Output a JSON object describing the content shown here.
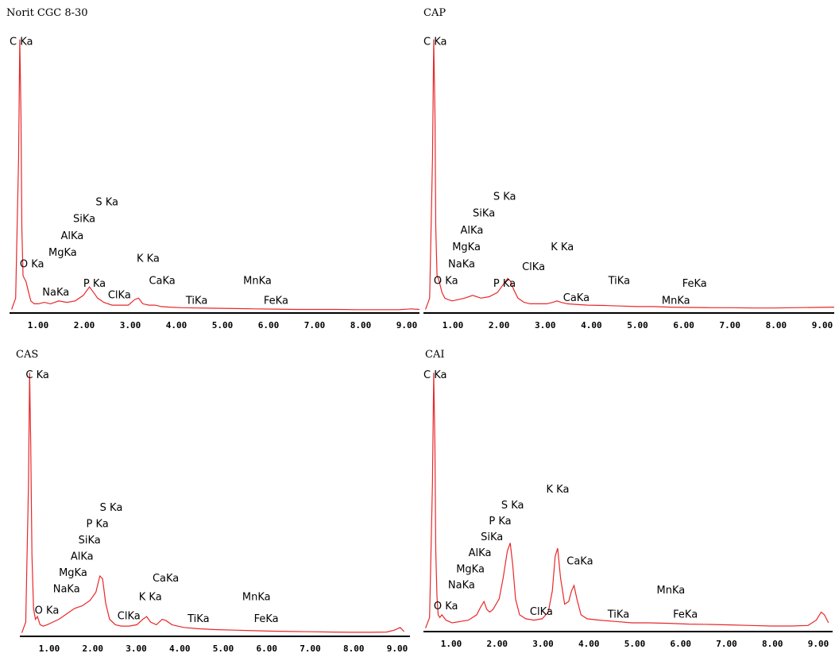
{
  "style": {
    "trace_color": "#e8282a",
    "axis_color": "#000000",
    "background": "#ffffff"
  },
  "chart_data": [
    {
      "type": "line",
      "title": "Norit CGC 8-30",
      "xlabel": "",
      "ylabel": "",
      "xlim": [
        0,
        10.0
      ],
      "ylim": [
        0,
        1
      ],
      "grid": false,
      "x_ticks": [
        "1.00",
        "2.00",
        "3.00",
        "4.00",
        "5.00",
        "6.00",
        "7.00",
        "8.00",
        "9.00"
      ],
      "series": [
        {
          "x": [
            0.05,
            0.15,
            0.22,
            0.25,
            0.28,
            0.3,
            0.33,
            0.36,
            0.4,
            0.45,
            0.52,
            0.6,
            0.7,
            0.85,
            1.0,
            1.2,
            1.4,
            1.6,
            1.8,
            1.95,
            2.05,
            2.15,
            2.3,
            2.5,
            2.7,
            2.9,
            3.05,
            3.15,
            3.25,
            3.4,
            3.55,
            3.7,
            3.9,
            4.2,
            4.6,
            5.0,
            5.5,
            6.0,
            6.5,
            7.0,
            7.5,
            8.0,
            8.5,
            9.0,
            9.5,
            9.8,
            10.0
          ],
          "y": [
            0.01,
            0.05,
            0.55,
            0.97,
            0.7,
            0.3,
            0.13,
            0.12,
            0.11,
            0.08,
            0.04,
            0.03,
            0.03,
            0.035,
            0.03,
            0.04,
            0.035,
            0.04,
            0.06,
            0.09,
            0.07,
            0.05,
            0.035,
            0.025,
            0.025,
            0.025,
            0.045,
            0.05,
            0.03,
            0.025,
            0.025,
            0.02,
            0.018,
            0.016,
            0.015,
            0.014,
            0.013,
            0.012,
            0.011,
            0.01,
            0.01,
            0.01,
            0.009,
            0.009,
            0.009,
            0.012,
            0.01
          ]
        }
      ],
      "annotations": [
        {
          "text": "C Ka",
          "x": 0.0,
          "y": 0.95
        },
        {
          "text": "O Ka",
          "x": 0.25,
          "y": 0.16
        },
        {
          "text": "NaKa",
          "x": 0.8,
          "y": 0.06
        },
        {
          "text": "MgKa",
          "x": 0.95,
          "y": 0.2
        },
        {
          "text": "AlKa",
          "x": 1.25,
          "y": 0.26
        },
        {
          "text": "SiKa",
          "x": 1.55,
          "y": 0.32
        },
        {
          "text": "S Ka",
          "x": 2.1,
          "y": 0.38
        },
        {
          "text": "P Ka",
          "x": 1.8,
          "y": 0.09
        },
        {
          "text": "ClKa",
          "x": 2.4,
          "y": 0.05
        },
        {
          "text": "K Ka",
          "x": 3.1,
          "y": 0.18
        },
        {
          "text": "CaKa",
          "x": 3.4,
          "y": 0.1
        },
        {
          "text": "TiKa",
          "x": 4.3,
          "y": 0.03
        },
        {
          "text": "MnKa",
          "x": 5.7,
          "y": 0.1
        },
        {
          "text": "FeKa",
          "x": 6.2,
          "y": 0.03
        }
      ]
    },
    {
      "type": "line",
      "title": "CAP",
      "xlabel": "",
      "ylabel": "",
      "xlim": [
        0,
        10.0
      ],
      "ylim": [
        0,
        1
      ],
      "grid": false,
      "x_ticks": [
        "1.00",
        "2.00",
        "3.00",
        "4.00",
        "5.00",
        "6.00",
        "7.00",
        "8.00",
        "9.00"
      ],
      "series": [
        {
          "x": [
            0.05,
            0.15,
            0.22,
            0.25,
            0.28,
            0.3,
            0.33,
            0.36,
            0.4,
            0.45,
            0.52,
            0.6,
            0.7,
            0.85,
            1.0,
            1.2,
            1.4,
            1.6,
            1.8,
            1.95,
            2.05,
            2.12,
            2.2,
            2.3,
            2.45,
            2.6,
            2.8,
            3.0,
            3.15,
            3.25,
            3.35,
            3.5,
            3.7,
            4.0,
            4.4,
            4.8,
            5.2,
            5.6,
            6.0,
            6.5,
            7.0,
            7.5,
            8.0,
            8.5,
            9.0,
            9.5,
            10.0
          ],
          "y": [
            0.01,
            0.05,
            0.55,
            0.97,
            0.7,
            0.3,
            0.13,
            0.12,
            0.1,
            0.07,
            0.05,
            0.045,
            0.04,
            0.045,
            0.05,
            0.06,
            0.05,
            0.055,
            0.07,
            0.1,
            0.12,
            0.11,
            0.08,
            0.05,
            0.035,
            0.03,
            0.03,
            0.03,
            0.035,
            0.04,
            0.035,
            0.03,
            0.028,
            0.025,
            0.024,
            0.022,
            0.02,
            0.02,
            0.018,
            0.017,
            0.016,
            0.016,
            0.015,
            0.015,
            0.016,
            0.017,
            0.018
          ]
        }
      ],
      "annotations": [
        {
          "text": "C Ka",
          "x": 0.0,
          "y": 0.95
        },
        {
          "text": "O Ka",
          "x": 0.25,
          "y": 0.1
        },
        {
          "text": "NaKa",
          "x": 0.6,
          "y": 0.16
        },
        {
          "text": "MgKa",
          "x": 0.7,
          "y": 0.22
        },
        {
          "text": "AlKa",
          "x": 0.9,
          "y": 0.28
        },
        {
          "text": "SiKa",
          "x": 1.2,
          "y": 0.34
        },
        {
          "text": "S Ka",
          "x": 1.7,
          "y": 0.4
        },
        {
          "text": "P Ka",
          "x": 1.7,
          "y": 0.09
        },
        {
          "text": "ClKa",
          "x": 2.4,
          "y": 0.15
        },
        {
          "text": "K Ka",
          "x": 3.1,
          "y": 0.22
        },
        {
          "text": "CaKa",
          "x": 3.4,
          "y": 0.04
        },
        {
          "text": "TiKa",
          "x": 4.5,
          "y": 0.1
        },
        {
          "text": "FeKa",
          "x": 6.3,
          "y": 0.09
        },
        {
          "text": "MnKa",
          "x": 5.8,
          "y": 0.03
        }
      ]
    },
    {
      "type": "line",
      "title": "CAS",
      "xlabel": "",
      "ylabel": "",
      "xlim": [
        0,
        10.0
      ],
      "ylim": [
        0,
        1
      ],
      "grid": false,
      "x_ticks": [
        "1.00",
        "2.00",
        "3.00",
        "4.00",
        "5.00",
        "6.00",
        "7.00",
        "8.00",
        "9.00"
      ],
      "series": [
        {
          "x": [
            0.05,
            0.15,
            0.22,
            0.25,
            0.28,
            0.31,
            0.35,
            0.4,
            0.45,
            0.52,
            0.6,
            0.7,
            0.85,
            1.0,
            1.2,
            1.4,
            1.6,
            1.8,
            1.95,
            2.05,
            2.12,
            2.2,
            2.3,
            2.45,
            2.6,
            2.8,
            3.0,
            3.15,
            3.25,
            3.35,
            3.5,
            3.65,
            3.75,
            3.9,
            4.2,
            4.6,
            5.0,
            5.5,
            6.0,
            6.5,
            7.0,
            7.5,
            8.0,
            8.5,
            9.0,
            9.4,
            9.6,
            9.75,
            9.85
          ],
          "y": [
            0.01,
            0.05,
            0.55,
            0.97,
            0.7,
            0.3,
            0.1,
            0.06,
            0.07,
            0.04,
            0.035,
            0.04,
            0.05,
            0.06,
            0.08,
            0.1,
            0.11,
            0.13,
            0.16,
            0.22,
            0.21,
            0.12,
            0.06,
            0.04,
            0.035,
            0.035,
            0.04,
            0.06,
            0.07,
            0.05,
            0.04,
            0.06,
            0.055,
            0.04,
            0.03,
            0.025,
            0.022,
            0.02,
            0.018,
            0.016,
            0.015,
            0.014,
            0.013,
            0.012,
            0.012,
            0.013,
            0.02,
            0.03,
            0.015
          ]
        }
      ],
      "annotations": [
        {
          "text": "C Ka",
          "x": 0.15,
          "y": 0.95
        },
        {
          "text": "O Ka",
          "x": 0.38,
          "y": 0.08
        },
        {
          "text": "NaKa",
          "x": 0.85,
          "y": 0.16
        },
        {
          "text": "MgKa",
          "x": 1.0,
          "y": 0.22
        },
        {
          "text": "AlKa",
          "x": 1.3,
          "y": 0.28
        },
        {
          "text": "SiKa",
          "x": 1.5,
          "y": 0.34
        },
        {
          "text": "P Ka",
          "x": 1.7,
          "y": 0.4
        },
        {
          "text": "S Ka",
          "x": 2.05,
          "y": 0.46
        },
        {
          "text": "ClKa",
          "x": 2.5,
          "y": 0.06
        },
        {
          "text": "K Ka",
          "x": 3.05,
          "y": 0.13
        },
        {
          "text": "CaKa",
          "x": 3.4,
          "y": 0.2
        },
        {
          "text": "TiKa",
          "x": 4.3,
          "y": 0.05
        },
        {
          "text": "MnKa",
          "x": 5.7,
          "y": 0.13
        },
        {
          "text": "FeKa",
          "x": 6.0,
          "y": 0.05
        }
      ]
    },
    {
      "type": "line",
      "title": "CAI",
      "xlabel": "",
      "ylabel": "",
      "xlim": [
        0,
        10.0
      ],
      "ylim": [
        0,
        1
      ],
      "grid": false,
      "x_ticks": [
        "1.00",
        "2.00",
        "3.00",
        "4.00",
        "5.00",
        "6.00",
        "7.00",
        "8.00",
        "9.00"
      ],
      "series": [
        {
          "x": [
            0.05,
            0.15,
            0.22,
            0.25,
            0.28,
            0.3,
            0.33,
            0.36,
            0.4,
            0.45,
            0.55,
            0.7,
            0.9,
            1.1,
            1.3,
            1.4,
            1.48,
            1.55,
            1.62,
            1.7,
            1.85,
            1.95,
            2.05,
            2.12,
            2.18,
            2.25,
            2.35,
            2.5,
            2.7,
            2.9,
            3.05,
            3.15,
            3.22,
            3.28,
            3.35,
            3.45,
            3.55,
            3.62,
            3.68,
            3.75,
            3.85,
            4.0,
            4.3,
            4.7,
            5.1,
            5.5,
            6.0,
            6.5,
            7.0,
            7.5,
            8.0,
            8.5,
            9.0,
            9.4,
            9.6,
            9.72,
            9.8,
            9.9
          ],
          "y": [
            0.01,
            0.05,
            0.55,
            0.97,
            0.7,
            0.3,
            0.13,
            0.06,
            0.05,
            0.06,
            0.04,
            0.03,
            0.035,
            0.04,
            0.06,
            0.09,
            0.11,
            0.08,
            0.07,
            0.08,
            0.12,
            0.2,
            0.3,
            0.33,
            0.25,
            0.12,
            0.06,
            0.045,
            0.04,
            0.045,
            0.07,
            0.15,
            0.28,
            0.31,
            0.2,
            0.1,
            0.11,
            0.15,
            0.17,
            0.12,
            0.06,
            0.045,
            0.04,
            0.035,
            0.03,
            0.03,
            0.028,
            0.025,
            0.024,
            0.022,
            0.02,
            0.018,
            0.018,
            0.02,
            0.04,
            0.07,
            0.06,
            0.03
          ]
        }
      ],
      "annotations": [
        {
          "text": "C Ka",
          "x": 0.0,
          "y": 0.95
        },
        {
          "text": "O Ka",
          "x": 0.25,
          "y": 0.08
        },
        {
          "text": "NaKa",
          "x": 0.6,
          "y": 0.16
        },
        {
          "text": "MgKa",
          "x": 0.8,
          "y": 0.22
        },
        {
          "text": "AlKa",
          "x": 1.1,
          "y": 0.28
        },
        {
          "text": "SiKa",
          "x": 1.4,
          "y": 0.34
        },
        {
          "text": "P Ka",
          "x": 1.6,
          "y": 0.4
        },
        {
          "text": "S Ka",
          "x": 1.9,
          "y": 0.46
        },
        {
          "text": "K Ka",
          "x": 3.0,
          "y": 0.52
        },
        {
          "text": "ClKa",
          "x": 2.6,
          "y": 0.06
        },
        {
          "text": "CaKa",
          "x": 3.5,
          "y": 0.25
        },
        {
          "text": "TiKa",
          "x": 4.5,
          "y": 0.05
        },
        {
          "text": "MnKa",
          "x": 5.7,
          "y": 0.14
        },
        {
          "text": "FeKa",
          "x": 6.1,
          "y": 0.05
        }
      ]
    }
  ]
}
